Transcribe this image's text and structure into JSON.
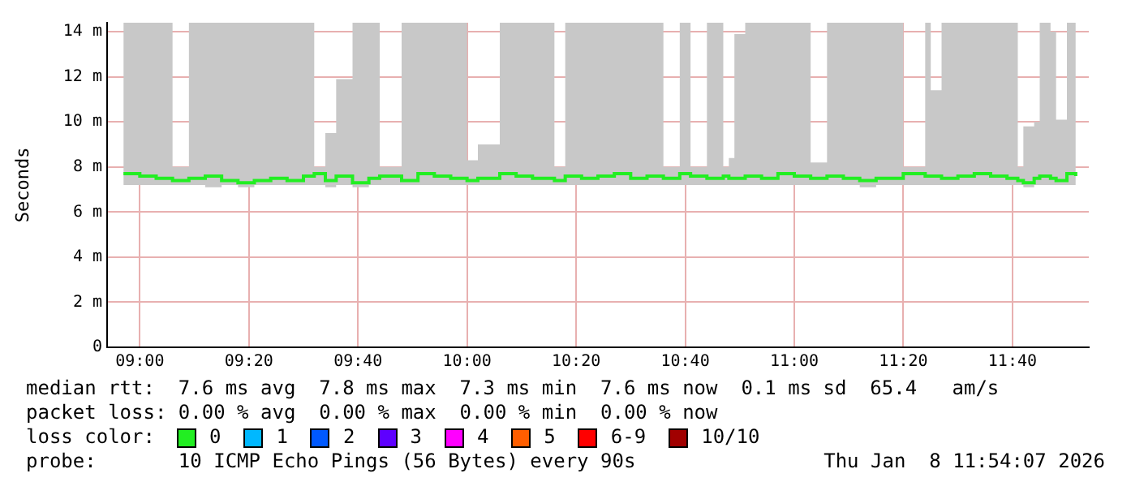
{
  "chart_data": {
    "type": "step",
    "ylabel": "Seconds",
    "x": [
      8.95,
      9.0,
      9.05,
      9.1,
      9.15,
      9.2,
      9.25,
      9.3,
      9.35,
      9.4,
      9.45,
      9.5,
      9.533,
      9.567,
      9.6,
      9.65,
      9.7,
      9.733,
      9.8,
      9.85,
      9.9,
      9.95,
      10.0,
      10.033,
      10.1,
      10.15,
      10.2,
      10.267,
      10.3,
      10.35,
      10.4,
      10.45,
      10.5,
      10.55,
      10.6,
      10.65,
      10.683,
      10.733,
      10.783,
      10.8,
      10.817,
      10.85,
      10.9,
      10.95,
      11.0,
      11.05,
      11.1,
      11.15,
      11.2,
      11.25,
      11.333,
      11.4,
      11.417,
      11.45,
      11.5,
      11.55,
      11.6,
      11.65,
      11.683,
      11.7,
      11.733,
      11.75,
      11.783,
      11.8,
      11.833,
      11.86
    ],
    "series": [
      {
        "color": "#22ee22",
        "values": [
          7.7,
          7.6,
          7.5,
          7.4,
          7.5,
          7.6,
          7.4,
          7.3,
          7.4,
          7.5,
          7.4,
          7.6,
          7.7,
          7.4,
          7.6,
          7.3,
          7.5,
          7.6,
          7.4,
          7.7,
          7.6,
          7.5,
          7.4,
          7.5,
          7.7,
          7.6,
          7.5,
          7.4,
          7.6,
          7.5,
          7.6,
          7.7,
          7.5,
          7.6,
          7.5,
          7.7,
          7.6,
          7.5,
          7.6,
          7.5,
          7.5,
          7.6,
          7.5,
          7.7,
          7.6,
          7.5,
          7.6,
          7.5,
          7.4,
          7.5,
          7.7,
          7.6,
          7.6,
          7.5,
          7.6,
          7.7,
          7.6,
          7.5,
          7.4,
          7.3,
          7.5,
          7.6,
          7.5,
          7.4,
          7.7,
          7.6
        ],
        "lower": [
          7.2,
          7.2,
          7.2,
          7.2,
          7.2,
          7.1,
          7.2,
          7.1,
          7.2,
          7.2,
          7.2,
          7.2,
          7.2,
          7.1,
          7.2,
          7.1,
          7.2,
          7.2,
          7.2,
          7.2,
          7.2,
          7.2,
          7.2,
          7.2,
          7.2,
          7.2,
          7.2,
          7.2,
          7.2,
          7.2,
          7.2,
          7.2,
          7.2,
          7.2,
          7.2,
          7.2,
          7.2,
          7.2,
          7.2,
          7.2,
          7.2,
          7.2,
          7.2,
          7.2,
          7.2,
          7.2,
          7.2,
          7.2,
          7.1,
          7.2,
          7.2,
          7.2,
          7.2,
          7.2,
          7.2,
          7.2,
          7.2,
          7.2,
          7.2,
          7.1,
          7.2,
          7.2,
          7.2,
          7.2,
          7.2,
          7.2
        ],
        "upper": [
          14.4,
          14.4,
          14.4,
          8,
          14.4,
          14.4,
          14.4,
          14.4,
          14.4,
          14.4,
          14.4,
          14.4,
          8,
          9.5,
          11.9,
          14.4,
          14.4,
          8,
          14.4,
          14.4,
          14.4,
          14.4,
          8.3,
          9,
          14.4,
          14.4,
          14.4,
          8,
          14.4,
          14.4,
          14.4,
          14.4,
          14.4,
          14.4,
          8,
          14.4,
          8,
          14.4,
          8,
          8.4,
          13.9,
          14.4,
          14.4,
          14.4,
          14.4,
          8.2,
          14.4,
          14.4,
          14.4,
          14.4,
          8,
          14.4,
          11.4,
          14.4,
          14.4,
          14.4,
          14.4,
          14.4,
          8,
          9.8,
          10,
          14.4,
          14,
          10.1,
          14.4,
          9.8
        ]
      }
    ],
    "xlim": [
      8.9,
      11.9
    ],
    "xticks": [
      {
        "value": 9,
        "label": "09:00"
      },
      {
        "value": 9.3333,
        "label": "09:20"
      },
      {
        "value": 9.6667,
        "label": "09:40"
      },
      {
        "value": 10,
        "label": "10:00"
      },
      {
        "value": 10.3333,
        "label": "10:20"
      },
      {
        "value": 10.6667,
        "label": "10:40"
      },
      {
        "value": 11,
        "label": "11:00"
      },
      {
        "value": 11.3333,
        "label": "11:20"
      },
      {
        "value": 11.6667,
        "label": "11:40"
      }
    ],
    "ylim": [
      0,
      14.4
    ],
    "yticks": [
      0,
      {
        "value": 2,
        "label": "2 m"
      },
      {
        "value": 4,
        "label": "4 m"
      },
      {
        "value": 6,
        "label": "6 m"
      },
      {
        "value": 8,
        "label": "8 m"
      },
      {
        "value": 10,
        "label": "10 m"
      },
      {
        "value": 12,
        "label": "12 m"
      },
      {
        "value": 14,
        "label": "14 m"
      }
    ],
    "grid": true,
    "legend_title": "loss color:",
    "annotations": [
      "median rtt:  7.6 ms avg  7.8 ms max  7.3 ms min  7.6 ms now  0.1 ms sd  65.4   am/s",
      "packet loss: 0.00 % avg  0.00 % max  0.00 % min  0.00 % now",
      "0",
      "1",
      "2",
      "3",
      "4",
      "5",
      "6-9",
      "10/10",
      "probe:       10 ICMP Echo Pings (56 Bytes) every 90s",
      "Thu Jan  8 11:54:07 2026"
    ]
  }
}
